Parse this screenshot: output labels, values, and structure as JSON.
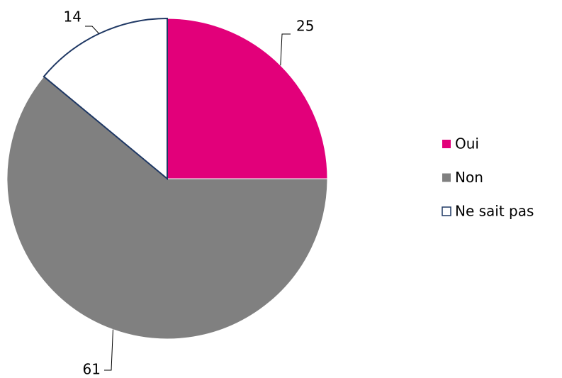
{
  "chart_data": {
    "type": "pie",
    "categories": [
      "Oui",
      "Non",
      "Ne sait pas"
    ],
    "values": [
      25,
      61,
      14
    ],
    "colors": [
      "#e2007a",
      "#808080",
      "#ffffff"
    ],
    "legend": "right"
  }
}
